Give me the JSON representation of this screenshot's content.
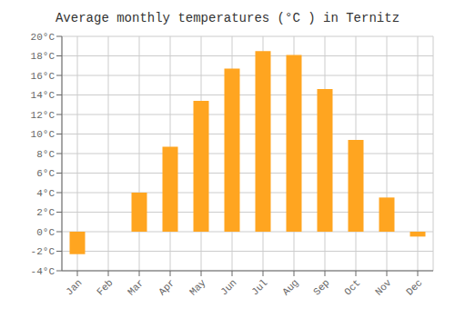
{
  "chart_data": {
    "type": "bar",
    "title": "Average monthly temperatures (°C ) in Ternitz",
    "categories": [
      "Jan",
      "Feb",
      "Mar",
      "Apr",
      "May",
      "Jun",
      "Jul",
      "Aug",
      "Sep",
      "Oct",
      "Nov",
      "Dec"
    ],
    "values": [
      -2.3,
      0.0,
      4.0,
      8.7,
      13.4,
      16.7,
      18.5,
      18.1,
      14.6,
      9.4,
      3.5,
      -0.5
    ],
    "color": "#FFA520",
    "ylim": [
      -4,
      20
    ],
    "yticks": [
      {
        "value": -4,
        "label": "-4°C"
      },
      {
        "value": -2,
        "label": "-2°C"
      },
      {
        "value": 0,
        "label": "0°C"
      },
      {
        "value": 2,
        "label": "2°C"
      },
      {
        "value": 4,
        "label": "4°C"
      },
      {
        "value": 6,
        "label": "6°C"
      },
      {
        "value": 8,
        "label": "8°C"
      },
      {
        "value": 10,
        "label": "10°C"
      },
      {
        "value": 12,
        "label": "12°C"
      },
      {
        "value": 14,
        "label": "14°C"
      },
      {
        "value": 16,
        "label": "16°C"
      },
      {
        "value": 18,
        "label": "18°C"
      },
      {
        "value": 20,
        "label": "20°C"
      }
    ],
    "grid": true
  }
}
